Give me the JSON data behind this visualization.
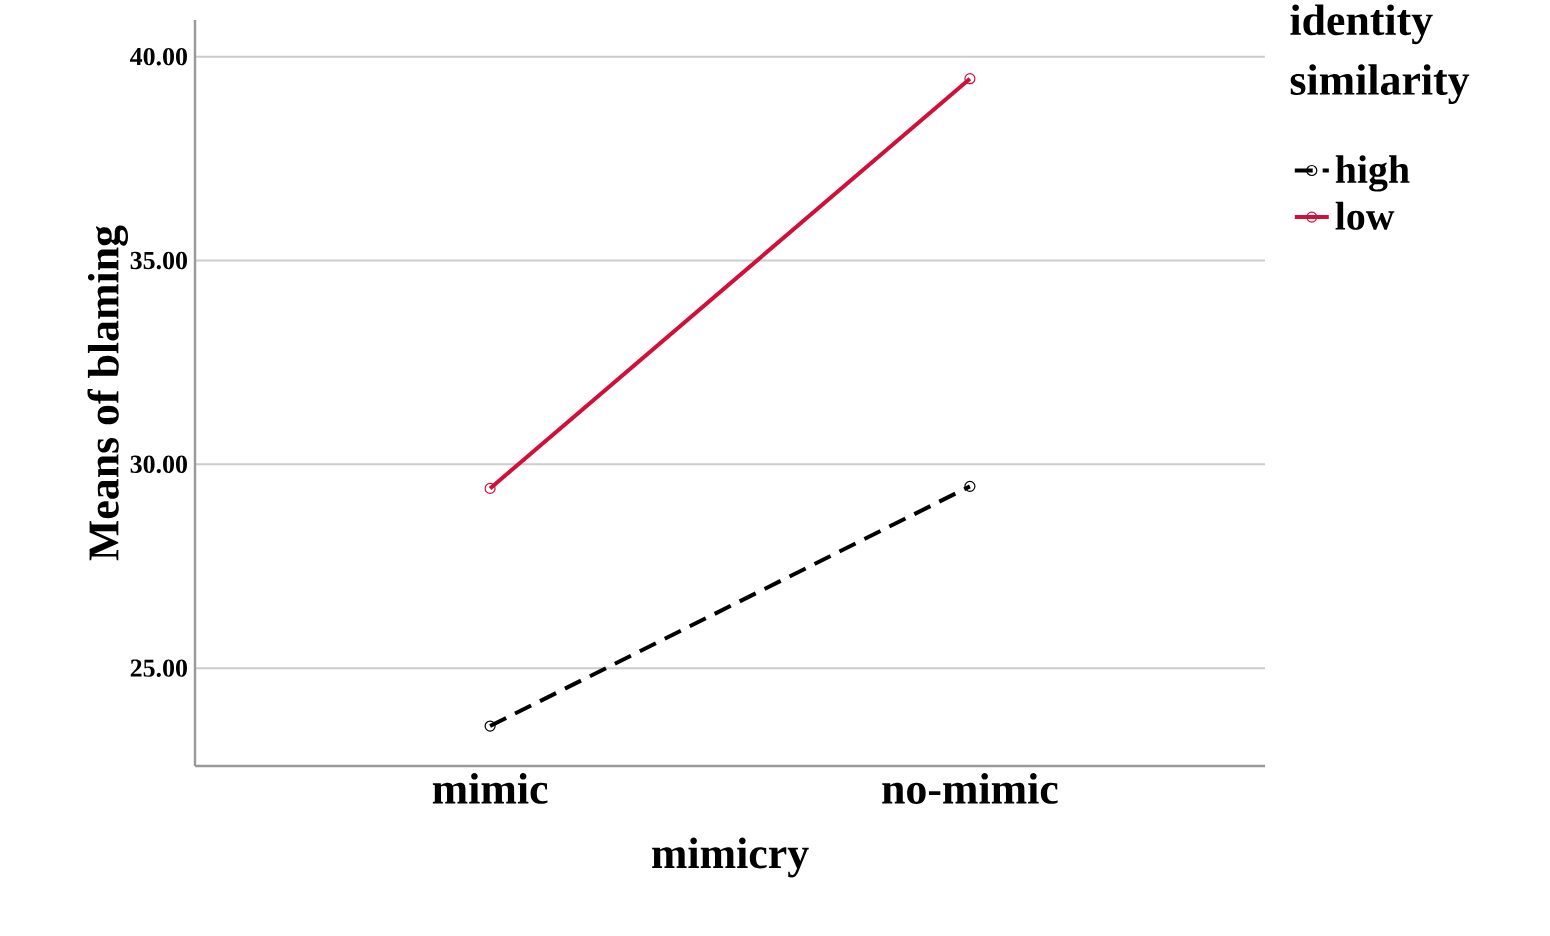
{
  "chart_data": {
    "type": "line",
    "xlabel": "mimicry",
    "ylabel": "Means of  blaming",
    "legend_title": "identity similarity",
    "categories": [
      "mimic",
      "no-mimic"
    ],
    "series": [
      {
        "name": "high",
        "color": "#000000",
        "line_style": "dashed",
        "values": [
          23.58,
          29.46
        ]
      },
      {
        "name": "low",
        "color": "#d0103a",
        "line_style": "solid",
        "values": [
          29.41,
          39.46
        ]
      }
    ],
    "ylim": [
      22.6,
      40.9
    ],
    "yticks": [
      {
        "value": 25,
        "label": "25.00"
      },
      {
        "value": 30,
        "label": "30.00"
      },
      {
        "value": 35,
        "label": "35.00"
      },
      {
        "value": 40,
        "label": "40.00"
      }
    ],
    "grid": "y",
    "legend": "top right",
    "marker": "circle"
  }
}
